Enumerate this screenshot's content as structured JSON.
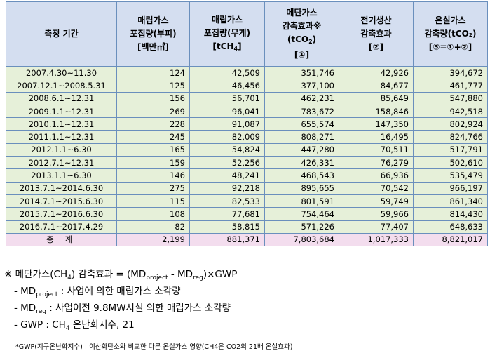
{
  "table": {
    "headers": [
      {
        "lines": [
          "측정 기간"
        ]
      },
      {
        "lines": [
          "매립가스",
          "포집량(부피)",
          "[백만㎥]"
        ]
      },
      {
        "lines": [
          "매립가스",
          "포집량(무게)"
        ],
        "unit_main": "[tCH",
        "unit_sub": "4",
        "unit_end": "]"
      },
      {
        "lines": [
          "메탄가스",
          "감축효과※"
        ],
        "unit_main": "(tCO",
        "unit_sub": "2",
        "unit_end": ")",
        "extra": "[①]"
      },
      {
        "lines": [
          "전기생산",
          "감축효과",
          "[②]"
        ]
      },
      {
        "lines": [
          "온실가스",
          "감축량(tCO₂)",
          "[③=①+②]"
        ]
      }
    ],
    "rows": [
      {
        "period": "2007.4.30~11.30",
        "vol": "124",
        "weight": "42,509",
        "methane": "351,746",
        "elec": "42,926",
        "total": "394,672"
      },
      {
        "period": "2007.12.1~2008.5.31",
        "vol": "125",
        "weight": "46,456",
        "methane": "377,100",
        "elec": "84,677",
        "total": "461,777"
      },
      {
        "period": "2008.6.1~12.31",
        "vol": "156",
        "weight": "56,701",
        "methane": "462,231",
        "elec": "85,649",
        "total": "547,880"
      },
      {
        "period": "2009.1.1~12.31",
        "vol": "269",
        "weight": "96,041",
        "methane": "783,672",
        "elec": "158,846",
        "total": "942,518"
      },
      {
        "period": "2010.1.1~12.31",
        "vol": "228",
        "weight": "91,087",
        "methane": "655,574",
        "elec": "147,350",
        "total": "802,924"
      },
      {
        "period": "2011.1.1~12.31",
        "vol": "245",
        "weight": "82,009",
        "methane": "808,271",
        "elec": "16,495",
        "total": "824,766"
      },
      {
        "period": "2012.1.1~6.30",
        "vol": "165",
        "weight": "54,824",
        "methane": "447,280",
        "elec": "70,511",
        "total": "517,791"
      },
      {
        "period": "2012.7.1~12.31",
        "vol": "159",
        "weight": "52,256",
        "methane": "426,331",
        "elec": "76,279",
        "total": "502,610"
      },
      {
        "period": "2013.1.1~6.30",
        "vol": "146",
        "weight": "48,241",
        "methane": "468,543",
        "elec": "66,936",
        "total": "535,479"
      },
      {
        "period": "2013.7.1~2014.6.30",
        "vol": "275",
        "weight": "92,218",
        "methane": "895,655",
        "elec": "70,542",
        "total": "966,197"
      },
      {
        "period": "2014.7.1~2015.6.30",
        "vol": "115",
        "weight": "82,533",
        "methane": "801,591",
        "elec": "59,749",
        "total": "861,340"
      },
      {
        "period": "2015.7.1~2016.6.30",
        "vol": "108",
        "weight": "77,681",
        "methane": "754,464",
        "elec": "59,966",
        "total": "814,430"
      },
      {
        "period": "2016.7.1~2017.4.29",
        "vol": "82",
        "weight": "58,815",
        "methane": "571,226",
        "elec": "77,407",
        "total": "648,633"
      }
    ],
    "total": {
      "period": "총 계",
      "vol": "2,199",
      "weight": "881,371",
      "methane": "7,803,684",
      "elec": "1,017,333",
      "total": "8,821,017"
    }
  },
  "notes": {
    "formula_a": "※ 메탄가스(CH",
    "formula_a_sub": "4",
    "formula_b": ") 감축효과 = (MD",
    "formula_b_sub": "project",
    "formula_c": " - MD",
    "formula_c_sub": "reg",
    "formula_d": ")×GWP",
    "l1_a": "- MD",
    "l1_sub": "project",
    "l1_b": " : 사업에 의한 매립가스 소각량",
    "l2_a": "- MD",
    "l2_sub": "reg",
    "l2_b": " : 사업이전 9.8MW시설 의한 매립가스 소각량",
    "l3_a": "- GWP : CH",
    "l3_sub": "4",
    "l3_b": " 온난화지수, 21",
    "footnote": "*GWP(지구온난화지수) : 이산화탄소와 비교한 다른 온실가스 영향(CH4은 CO2의 21배 온실효과)"
  },
  "colors": {
    "header_bg": "#d4def0",
    "row_bg": "#e6f0d9",
    "total_bg": "#f3ddee",
    "border": "#6a8fbd"
  }
}
